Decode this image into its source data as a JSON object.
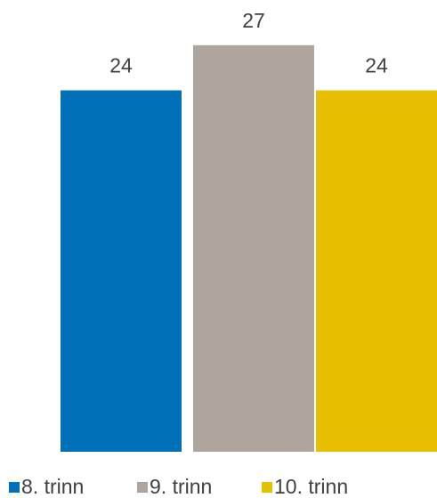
{
  "chart_data": {
    "type": "bar",
    "series": [
      {
        "name": "8. trinn",
        "color": "#0070b8",
        "values": [
          24
        ]
      },
      {
        "name": "9. trinn",
        "color": "#aea59d",
        "values": [
          27
        ]
      },
      {
        "name": "10. trinn",
        "color": "#e8bf00",
        "values": [
          24
        ]
      }
    ],
    "ylim": [
      0,
      30
    ],
    "legend": "bottom"
  }
}
